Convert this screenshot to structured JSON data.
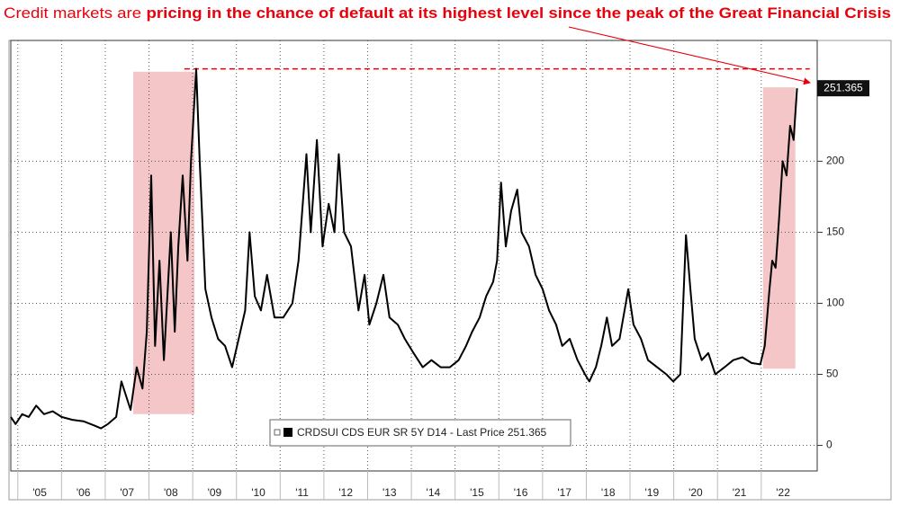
{
  "chart_data": {
    "type": "line",
    "title": "Credit markets are",
    "title_emphasis": "pricing in the chance of default at its highest level since the peak of the Great Financial Crisis",
    "title_color": "#e8000b",
    "x": [
      2004.84,
      2004.95,
      2005.1,
      2005.25,
      2005.42,
      2005.6,
      2005.8,
      2006.0,
      2006.25,
      2006.5,
      2006.75,
      2006.9,
      2007.06,
      2007.25,
      2007.37,
      2007.58,
      2007.72,
      2007.85,
      2007.95,
      2008.05,
      2008.14,
      2008.24,
      2008.34,
      2008.43,
      2008.5,
      2008.59,
      2008.67,
      2008.77,
      2008.88,
      2008.96,
      2009.08,
      2009.16,
      2009.29,
      2009.43,
      2009.58,
      2009.74,
      2009.9,
      2010.05,
      2010.2,
      2010.3,
      2010.42,
      2010.56,
      2010.7,
      2010.87,
      2011.07,
      2011.28,
      2011.42,
      2011.6,
      2011.7,
      2011.84,
      2011.97,
      2012.11,
      2012.24,
      2012.34,
      2012.46,
      2012.62,
      2012.79,
      2012.93,
      2013.04,
      2013.2,
      2013.36,
      2013.5,
      2013.69,
      2013.85,
      2014.05,
      2014.26,
      2014.46,
      2014.67,
      2014.88,
      2015.08,
      2015.25,
      2015.39,
      2015.56,
      2015.71,
      2015.87,
      2015.96,
      2016.05,
      2016.16,
      2016.28,
      2016.42,
      2016.52,
      2016.69,
      2016.84,
      2017.0,
      2017.15,
      2017.31,
      2017.45,
      2017.62,
      2017.8,
      2017.97,
      2018.07,
      2018.22,
      2018.34,
      2018.47,
      2018.59,
      2018.76,
      2018.96,
      2019.08,
      2019.25,
      2019.41,
      2019.62,
      2019.83,
      2019.99,
      2020.15,
      2020.28,
      2020.38,
      2020.48,
      2020.64,
      2020.79,
      2020.95,
      2021.16,
      2021.36,
      2021.57,
      2021.78,
      2021.98,
      2022.08,
      2022.19,
      2022.25,
      2022.33,
      2022.41,
      2022.49,
      2022.58,
      2022.66,
      2022.74,
      2022.82
    ],
    "series": [
      {
        "name": "CRDSUI CDS EUR SR 5Y D14 - Last Price 251.365",
        "color": "#000000",
        "values": [
          20,
          15,
          22,
          20,
          28,
          22,
          24,
          20,
          18,
          17,
          14,
          12,
          15,
          20,
          45,
          25,
          55,
          40,
          80,
          190,
          70,
          130,
          60,
          110,
          150,
          80,
          140,
          190,
          130,
          200,
          265,
          200,
          110,
          90,
          75,
          70,
          55,
          75,
          95,
          150,
          105,
          95,
          120,
          90,
          90,
          100,
          130,
          205,
          150,
          215,
          140,
          170,
          150,
          205,
          150,
          140,
          95,
          120,
          85,
          100,
          120,
          90,
          85,
          75,
          65,
          55,
          60,
          55,
          55,
          60,
          70,
          80,
          90,
          105,
          115,
          130,
          185,
          140,
          165,
          180,
          150,
          140,
          120,
          110,
          95,
          85,
          70,
          75,
          60,
          50,
          45,
          55,
          70,
          90,
          70,
          75,
          110,
          85,
          75,
          60,
          55,
          50,
          45,
          50,
          148,
          110,
          75,
          60,
          65,
          50,
          55,
          60,
          62,
          58,
          57,
          70,
          110,
          130,
          125,
          160,
          200,
          190,
          225,
          215,
          251.365
        ]
      }
    ],
    "last_price_label": "251.365",
    "xlim": [
      2004.84,
      2023.28
    ],
    "xticks": [
      {
        "value": 2005,
        "label": "'05"
      },
      {
        "value": 2006,
        "label": "'06"
      },
      {
        "value": 2007,
        "label": "'07"
      },
      {
        "value": 2008,
        "label": "'08"
      },
      {
        "value": 2009,
        "label": "'09"
      },
      {
        "value": 2010,
        "label": "'10"
      },
      {
        "value": 2011,
        "label": "'11"
      },
      {
        "value": 2012,
        "label": "'12"
      },
      {
        "value": 2013,
        "label": "'13"
      },
      {
        "value": 2014,
        "label": "'14"
      },
      {
        "value": 2015,
        "label": "'15"
      },
      {
        "value": 2016,
        "label": "'16"
      },
      {
        "value": 2017,
        "label": "'17"
      },
      {
        "value": 2018,
        "label": "'18"
      },
      {
        "value": 2019,
        "label": "'19"
      },
      {
        "value": 2020,
        "label": "'20"
      },
      {
        "value": 2021,
        "label": "'21"
      },
      {
        "value": 2022,
        "label": "'22"
      }
    ],
    "ylim": [
      -18,
      285
    ],
    "yticks": [
      0,
      50,
      100,
      150,
      200
    ],
    "grid": true,
    "shaded": [
      {
        "x": [
          2007.64,
          2009.04
        ],
        "y": [
          22,
          263
        ]
      },
      {
        "x": [
          2022.04,
          2022.78
        ],
        "y": [
          54,
          252
        ]
      }
    ],
    "shade_color": "#f5c6c8",
    "reference_line": {
      "value": 265,
      "x": [
        2008.81,
        2023.11
      ],
      "color": "#e8000b"
    }
  }
}
